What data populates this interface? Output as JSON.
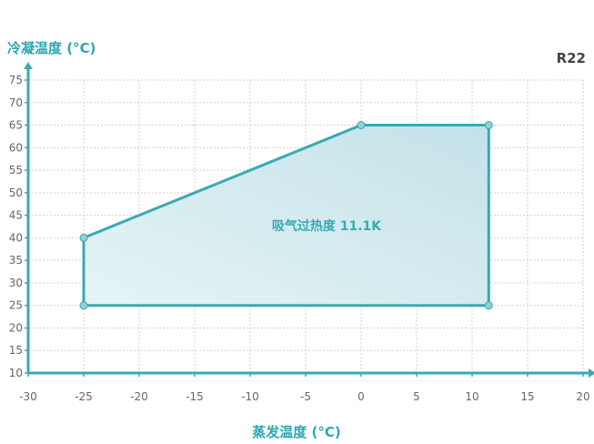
{
  "chart_data": {
    "type": "area",
    "ylabel": "冷凝温度 (°C)",
    "xlabel": "蒸发温度 (°C)",
    "refrigerant": "R22",
    "annotation": "吸气过热度 11.1K",
    "xlim": [
      -30,
      20
    ],
    "ylim": [
      10,
      75
    ],
    "x_ticks": [
      -30,
      -25,
      -20,
      -15,
      -10,
      -5,
      0,
      5,
      10,
      15,
      20
    ],
    "y_ticks": [
      10,
      15,
      20,
      25,
      30,
      35,
      40,
      45,
      50,
      55,
      60,
      65,
      70,
      75
    ],
    "grid": true,
    "series": [
      {
        "points": [
          {
            "x": -25,
            "y": 25
          },
          {
            "x": -25,
            "y": 40
          },
          {
            "x": 0,
            "y": 65
          },
          {
            "x": 11.5,
            "y": 65
          },
          {
            "x": 11.5,
            "y": 25
          }
        ]
      }
    ],
    "colors": {
      "accent": "#3aa9b4",
      "fill_start": "#e3f3f5",
      "fill_end": "#c6e4ea",
      "grid": "#d0d0d0"
    }
  }
}
